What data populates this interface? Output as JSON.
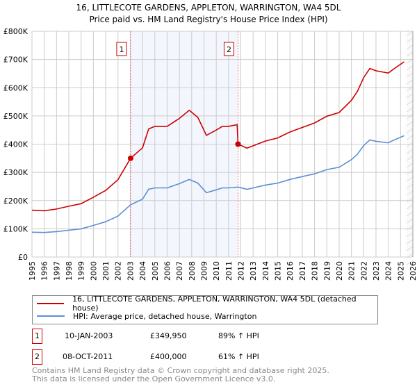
{
  "title": "16, LITTLECOTE GARDENS, APPLETON, WARRINGTON, WA4 5DL",
  "subtitle": "Price paid vs. HM Land Registry's House Price Index (HPI)",
  "chart_data": {
    "type": "line",
    "xlim": [
      1995,
      2026
    ],
    "ylim": [
      0,
      800000
    ],
    "yticks": [
      0,
      100000,
      200000,
      300000,
      400000,
      500000,
      600000,
      700000,
      800000
    ],
    "ytick_labels": [
      "£0",
      "£100K",
      "£200K",
      "£300K",
      "£400K",
      "£500K",
      "£600K",
      "£700K",
      "£800K"
    ],
    "xticks": [
      1995,
      1996,
      1997,
      1998,
      1999,
      2000,
      2001,
      2002,
      2003,
      2004,
      2005,
      2006,
      2007,
      2008,
      2009,
      2010,
      2011,
      2012,
      2013,
      2014,
      2015,
      2016,
      2017,
      2018,
      2019,
      2020,
      2021,
      2022,
      2023,
      2024,
      2025,
      2026
    ],
    "grid": true,
    "shaded_period": [
      2003.03,
      2011.77
    ],
    "forecast_hatch_from": 2025.5,
    "series": [
      {
        "name": "16, LITTLECOTE GARDENS, APPLETON, WARRINGTON, WA4 5DL (detached house)",
        "color": "#cc0000",
        "x": [
          1995,
          1996,
          1997,
          1998,
          1999,
          2000,
          2001,
          2002,
          2003.03,
          2004,
          2004.5,
          2005,
          2006,
          2007,
          2007.8,
          2008.5,
          2009.2,
          2010,
          2010.5,
          2011,
          2011.7,
          2011.77,
          2012.5,
          2013,
          2014,
          2015,
          2016,
          2017,
          2018,
          2019,
          2020,
          2021,
          2021.5,
          2022,
          2022.5,
          2023,
          2024,
          2024.5,
          2025.3
        ],
        "y": [
          166000,
          164000,
          170000,
          180000,
          189000,
          212000,
          236000,
          274000,
          349950,
          387000,
          454000,
          463000,
          463000,
          491000,
          520000,
          495000,
          431000,
          450000,
          463000,
          463000,
          469000,
          400000,
          386000,
          394000,
          411000,
          422000,
          443000,
          459000,
          475000,
          499000,
          512000,
          555000,
          588000,
          636000,
          668000,
          660000,
          652000,
          668000,
          692000
        ]
      },
      {
        "name": "HPI: Average price, detached house, Warrington",
        "color": "#5b8fd6",
        "x": [
          1995,
          1996,
          1997,
          1998,
          1999,
          2000,
          2001,
          2002,
          2003.03,
          2004,
          2004.5,
          2005,
          2006,
          2007,
          2007.8,
          2008.5,
          2009.2,
          2010,
          2010.5,
          2011,
          2011.77,
          2012.5,
          2013,
          2014,
          2015,
          2016,
          2017,
          2018,
          2019,
          2020,
          2021,
          2021.5,
          2022,
          2022.5,
          2023,
          2024,
          2024.5,
          2025.3
        ],
        "y": [
          88000,
          87000,
          90000,
          95000,
          100000,
          112000,
          125000,
          145000,
          185000,
          205000,
          240000,
          245000,
          245000,
          260000,
          275000,
          262000,
          228000,
          238000,
          245000,
          245000,
          248000,
          240000,
          245000,
          255000,
          262000,
          275000,
          285000,
          295000,
          310000,
          318000,
          345000,
          365000,
          395000,
          415000,
          410000,
          405000,
          415000,
          430000
        ]
      }
    ],
    "markers": [
      {
        "label": "1",
        "x": 2003.03,
        "y": 349950
      },
      {
        "label": "2",
        "x": 2011.77,
        "y": 400000
      }
    ]
  },
  "legend": {
    "property": "16, LITTLECOTE GARDENS, APPLETON, WARRINGTON, WA4 5DL (detached house)",
    "hpi": "HPI: Average price, detached house, Warrington"
  },
  "sales": [
    {
      "num": "1",
      "date": "10-JAN-2003",
      "price": "£349,950",
      "hpi": "89% ↑ HPI"
    },
    {
      "num": "2",
      "date": "08-OCT-2011",
      "price": "£400,000",
      "hpi": "61% ↑ HPI"
    }
  ],
  "footer": {
    "line1": "Contains HM Land Registry data © Crown copyright and database right 2025.",
    "line2": "This data is licensed under the Open Government Licence v3.0."
  }
}
